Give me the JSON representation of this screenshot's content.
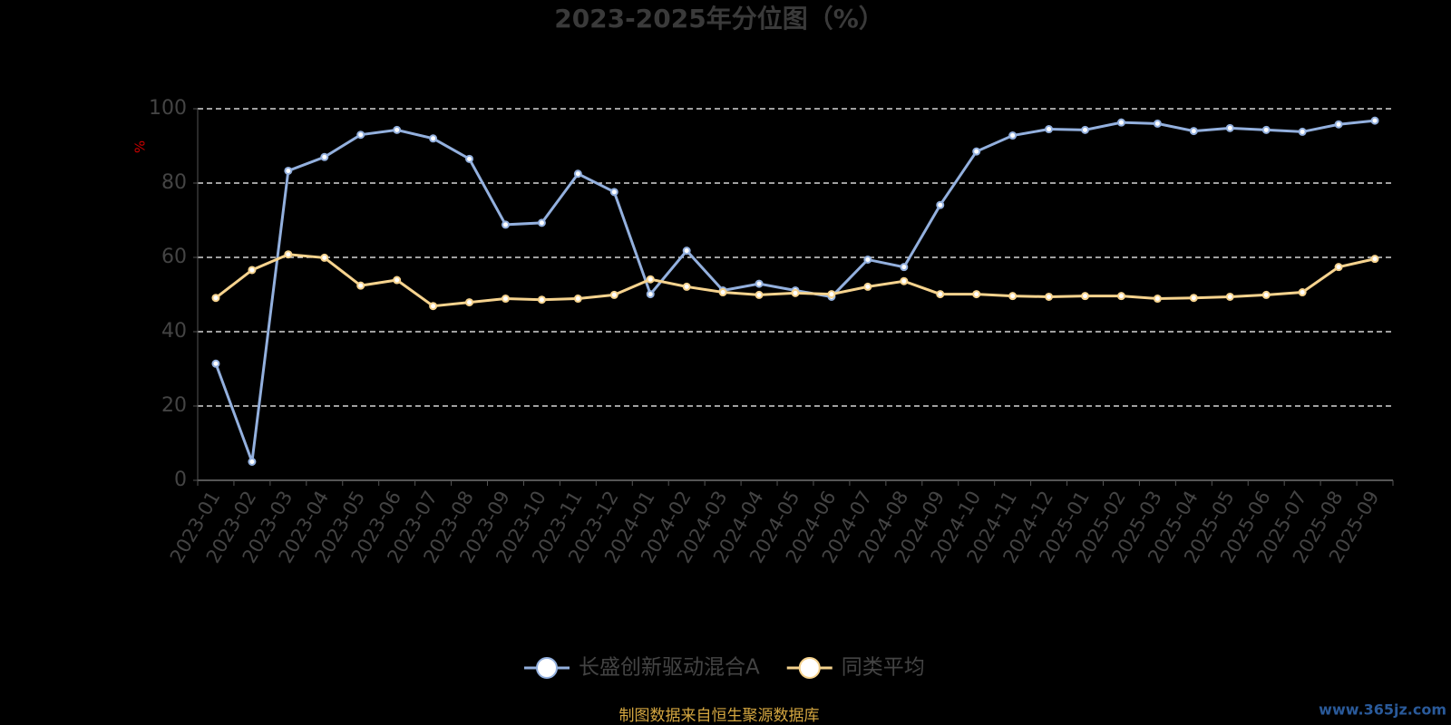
{
  "chart_data": {
    "type": "line",
    "title": "2023-2025年分位图（%）",
    "y_label": "%",
    "categories": [
      "2023-01",
      "2023-02",
      "2023-03",
      "2023-04",
      "2023-05",
      "2023-06",
      "2023-07",
      "2023-08",
      "2023-09",
      "2023-10",
      "2023-11",
      "2023-12",
      "2024-01",
      "2024-02",
      "2024-03",
      "2024-04",
      "2024-05",
      "2024-06",
      "2024-07",
      "2024-08",
      "2024-09",
      "2024-10",
      "2024-11",
      "2024-12",
      "2025-01",
      "2025-02",
      "2025-03",
      "2025-04",
      "2025-05",
      "2025-06",
      "2025-07",
      "2025-08",
      "2025-09"
    ],
    "series": [
      {
        "name": "长盛创新驱动混合A",
        "color": "#93b0de",
        "values": [
          31.4,
          5.0,
          83.3,
          87.0,
          93.0,
          94.3,
          92.0,
          86.5,
          68.8,
          69.3,
          82.5,
          77.6,
          50.1,
          61.8,
          51.1,
          52.9,
          51.1,
          49.4,
          59.4,
          57.4,
          74.1,
          88.5,
          92.8,
          94.5,
          94.3,
          96.3,
          96.0,
          94.0,
          94.8,
          94.3,
          93.8,
          95.8,
          96.8
        ]
      },
      {
        "name": "同类平均",
        "color": "#f6d38e",
        "values": [
          49.1,
          56.6,
          60.8,
          59.9,
          52.4,
          53.9,
          46.9,
          47.9,
          48.9,
          48.6,
          48.9,
          49.9,
          54.1,
          52.1,
          50.6,
          49.9,
          50.4,
          50.1,
          52.1,
          53.6,
          50.1,
          50.1,
          49.6,
          49.4,
          49.6,
          49.6,
          48.9,
          49.1,
          49.4,
          49.9,
          50.6,
          57.4,
          59.6
        ]
      }
    ],
    "ylim": [
      0,
      100
    ],
    "yticks": [
      0,
      20,
      40,
      60,
      80,
      100
    ],
    "grid": true,
    "source": "制图数据来自恒生聚源数据库",
    "watermark": "www.365jz.com"
  }
}
